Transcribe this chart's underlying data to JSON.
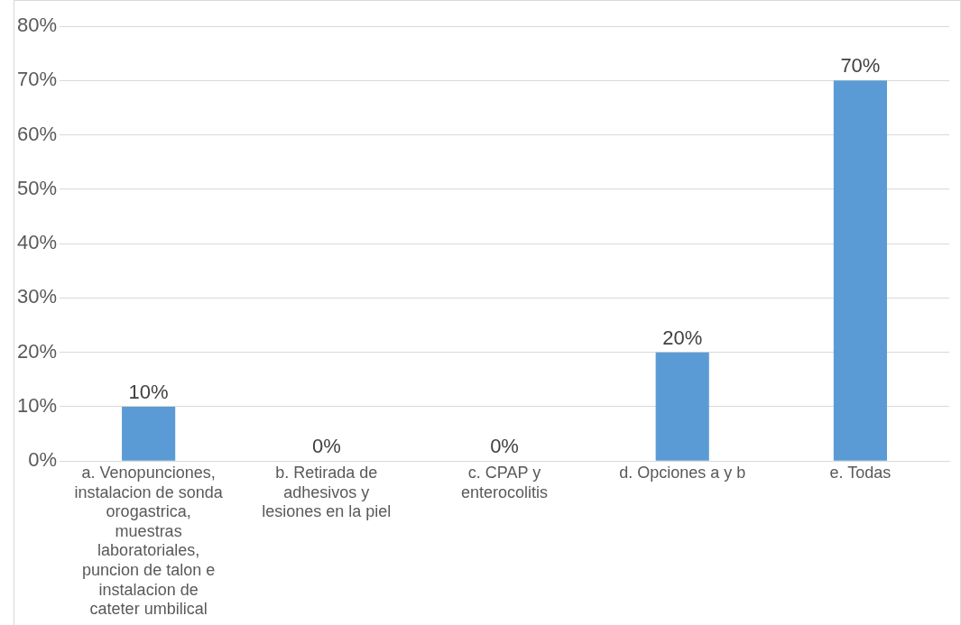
{
  "chart_data": {
    "type": "bar",
    "categories": [
      "a. Venopunciones, instalacion de sonda orogastrica, muestras laboratoriales, puncion de talon e instalacion de cateter umbilical",
      "b. Retirada de adhesivos y lesiones en la piel",
      "c. CPAP y enterocolitis",
      "d. Opciones a y b",
      "e. Todas"
    ],
    "values": [
      10,
      0,
      0,
      20,
      70
    ],
    "value_labels": [
      "10%",
      "0%",
      "0%",
      "20%",
      "70%"
    ],
    "color": "#5b9bd5",
    "ylim": [
      0,
      80
    ],
    "yticks": [
      {
        "value": 0,
        "label": "0%"
      },
      {
        "value": 10,
        "label": "10%"
      },
      {
        "value": 20,
        "label": "20%"
      },
      {
        "value": 30,
        "label": "30%"
      },
      {
        "value": 40,
        "label": "40%"
      },
      {
        "value": 50,
        "label": "50%"
      },
      {
        "value": 60,
        "label": "60%"
      },
      {
        "value": 70,
        "label": "70%"
      },
      {
        "value": 80,
        "label": "80%"
      }
    ],
    "grid": "y",
    "legend": false
  }
}
